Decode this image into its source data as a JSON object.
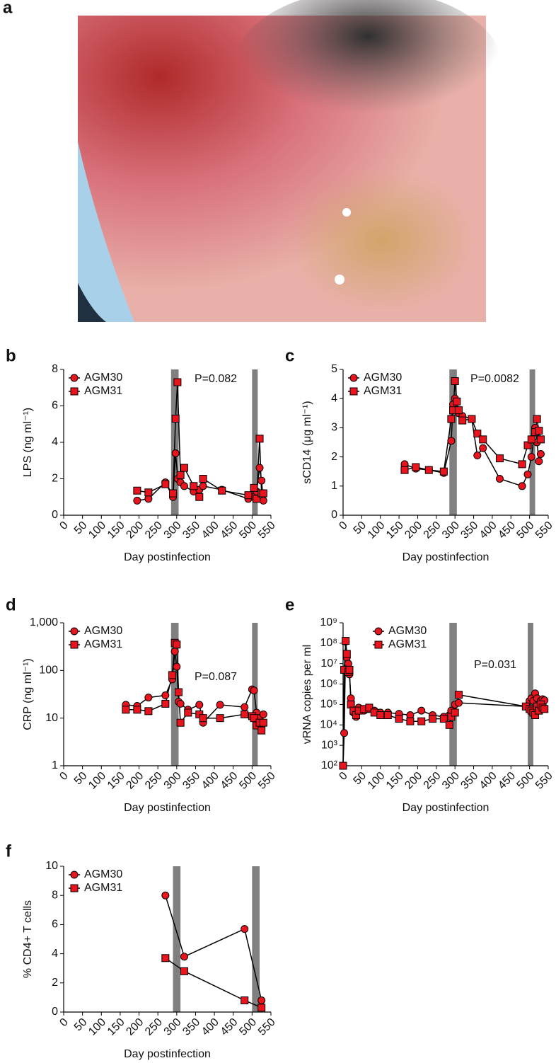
{
  "image_label": "a",
  "chart_data": [
    {
      "type": "line",
      "panel": "b",
      "ylabel": "LPS (ng ml⁻¹)",
      "xlabel": "Day postinfection",
      "annotation": "P=0.082",
      "xlim": [
        0,
        550
      ],
      "xticks": [
        0,
        50,
        100,
        150,
        200,
        250,
        300,
        350,
        400,
        450,
        500,
        550
      ],
      "ylim": [
        0,
        8
      ],
      "yticks": [
        0,
        2,
        4,
        6,
        8
      ],
      "log_y": false,
      "shaded_regions": [
        [
          285,
          305
        ],
        [
          500,
          515
        ]
      ],
      "series": [
        {
          "name": "AGM30",
          "color": "#e8141e",
          "marker": "circle",
          "x": [
            195,
            225,
            270,
            290,
            297,
            303,
            310,
            320,
            345,
            360,
            370,
            420,
            490,
            505,
            512,
            520,
            525,
            530
          ],
          "values": [
            0.8,
            0.9,
            1.8,
            1.0,
            3.4,
            2.0,
            1.8,
            1.6,
            1.3,
            1.4,
            1.6,
            1.4,
            0.9,
            1.0,
            1.3,
            2.6,
            1.9,
            0.8
          ]
        },
        {
          "name": "AGM31",
          "color": "#e8141e",
          "marker": "square",
          "x": [
            195,
            225,
            270,
            290,
            297,
            302,
            310,
            320,
            345,
            360,
            370,
            420,
            490,
            505,
            512,
            520,
            525,
            530
          ],
          "values": [
            1.35,
            1.25,
            1.7,
            1.2,
            5.3,
            7.3,
            2.2,
            2.6,
            1.6,
            1.0,
            2.0,
            1.35,
            1.1,
            1.5,
            0.9,
            4.2,
            1.2,
            1.2
          ]
        }
      ]
    },
    {
      "type": "line",
      "panel": "c",
      "ylabel": "sCD14 (μg ml⁻¹)",
      "xlabel": "Day postinfection",
      "annotation": "P=0.0082",
      "xlim": [
        0,
        550
      ],
      "xticks": [
        0,
        50,
        100,
        150,
        200,
        250,
        300,
        350,
        400,
        450,
        500,
        550
      ],
      "ylim": [
        0,
        5
      ],
      "yticks": [
        0,
        1,
        2,
        3,
        4,
        5
      ],
      "log_y": false,
      "shaded_regions": [
        [
          285,
          305
        ],
        [
          500,
          515
        ]
      ],
      "series": [
        {
          "name": "AGM30",
          "color": "#e8141e",
          "marker": "circle",
          "x": [
            165,
            195,
            230,
            270,
            290,
            295,
            300,
            305,
            310,
            320,
            345,
            360,
            375,
            420,
            480,
            495,
            505,
            515,
            520,
            525,
            530
          ],
          "values": [
            1.75,
            1.6,
            1.55,
            1.45,
            2.55,
            3.8,
            4.0,
            3.6,
            3.5,
            3.4,
            3.3,
            2.05,
            2.3,
            1.25,
            1.0,
            1.4,
            2.0,
            3.0,
            2.5,
            1.85,
            2.1
          ]
        },
        {
          "name": "AGM31",
          "color": "#e8141e",
          "marker": "square",
          "x": [
            165,
            195,
            230,
            270,
            290,
            295,
            300,
            305,
            310,
            320,
            345,
            360,
            375,
            420,
            480,
            495,
            505,
            515,
            520,
            525,
            530
          ],
          "values": [
            1.55,
            1.65,
            1.55,
            1.5,
            3.3,
            3.6,
            4.6,
            3.9,
            3.6,
            3.25,
            3.3,
            2.8,
            2.6,
            1.95,
            1.75,
            2.4,
            2.6,
            2.85,
            3.3,
            2.9,
            2.6
          ]
        }
      ]
    },
    {
      "type": "line",
      "panel": "d",
      "ylabel": "CRP (ng ml⁻¹)",
      "xlabel": "Day postinfection",
      "annotation": "P=0.087",
      "xlim": [
        0,
        550
      ],
      "xticks": [
        0,
        50,
        100,
        150,
        200,
        250,
        300,
        350,
        400,
        450,
        500,
        550
      ],
      "ylim": [
        1,
        1000
      ],
      "yticks": [
        1,
        10,
        100,
        {
          "value": 1000,
          "label": "1,000"
        }
      ],
      "log_y": true,
      "shaded_regions": [
        [
          285,
          305
        ],
        [
          500,
          515
        ]
      ],
      "series": [
        {
          "name": "AGM30",
          "color": "#e8141e",
          "marker": "circle",
          "x": [
            165,
            195,
            225,
            270,
            288,
            295,
            300,
            305,
            310,
            330,
            360,
            370,
            415,
            480,
            500,
            505,
            512,
            520,
            525,
            530
          ],
          "values": [
            19,
            18,
            27,
            30,
            65,
            250,
            120,
            22,
            20,
            15,
            19,
            8,
            19,
            17,
            40,
            38,
            13,
            10,
            8,
            12
          ]
        },
        {
          "name": "AGM31",
          "color": "#e8141e",
          "marker": "square",
          "x": [
            165,
            195,
            225,
            270,
            288,
            295,
            300,
            305,
            310,
            330,
            360,
            370,
            415,
            480,
            500,
            505,
            512,
            520,
            525,
            530
          ],
          "values": [
            15,
            15,
            14,
            20,
            80,
            380,
            350,
            35,
            8,
            13,
            12,
            10,
            10,
            12,
            11,
            10,
            7,
            8,
            5.5,
            8
          ]
        }
      ]
    },
    {
      "type": "line",
      "panel": "e",
      "ylabel": "vRNA copies per ml",
      "xlabel": "Day postinfection",
      "annotation": "P=0.031",
      "xlim": [
        0,
        550
      ],
      "xticks": [
        0,
        50,
        100,
        150,
        200,
        250,
        300,
        350,
        400,
        450,
        500,
        550
      ],
      "ylim": [
        100,
        1000000000
      ],
      "yticks": [
        {
          "value": 100,
          "label": "10²"
        },
        {
          "value": 1000,
          "label": "10³"
        },
        {
          "value": 10000,
          "label": "10⁴"
        },
        {
          "value": 100000,
          "label": "10⁵"
        },
        {
          "value": 1000000,
          "label": "10⁶"
        },
        {
          "value": 10000000,
          "label": "10⁷"
        },
        {
          "value": 100000000,
          "label": "10⁸"
        },
        {
          "value": 1000000000,
          "label": "10⁹"
        }
      ],
      "log_y": true,
      "shaded_regions": [
        [
          285,
          305
        ],
        [
          495,
          510
        ]
      ],
      "series": [
        {
          "name": "AGM30",
          "color": "#e8141e",
          "marker": "circle",
          "x": [
            0,
            3,
            7,
            10,
            14,
            17,
            21,
            28,
            35,
            42,
            56,
            70,
            84,
            100,
            120,
            150,
            180,
            210,
            240,
            270,
            285,
            290,
            300,
            310,
            490,
            500,
            505,
            510,
            515,
            520,
            525,
            530,
            535,
            540
          ],
          "values": [
            100,
            4000,
            120000000,
            20000000,
            10000000,
            3000000,
            200000,
            40000,
            25000,
            70000,
            50000,
            60000,
            50000,
            40000,
            40000,
            35000,
            30000,
            50000,
            30000,
            25000,
            30000,
            50000,
            100000,
            120000,
            80000,
            150000,
            200000,
            150000,
            350000,
            200000,
            100000,
            150000,
            180000,
            160000
          ]
        },
        {
          "name": "AGM31",
          "color": "#e8141e",
          "marker": "square",
          "x": [
            0,
            3,
            7,
            10,
            14,
            17,
            21,
            28,
            35,
            42,
            56,
            70,
            84,
            100,
            120,
            150,
            180,
            210,
            240,
            270,
            285,
            290,
            300,
            310,
            490,
            500,
            505,
            510,
            515,
            520,
            525,
            530,
            535,
            540
          ],
          "values": [
            100,
            5000000,
            130000000,
            30000000,
            4000000,
            5000000,
            100000,
            50000,
            30000,
            50000,
            60000,
            70000,
            40000,
            30000,
            30000,
            20000,
            15000,
            15000,
            20000,
            20000,
            10000,
            25000,
            40000,
            300000,
            80000,
            60000,
            50000,
            40000,
            30000,
            80000,
            50000,
            100000,
            70000,
            60000
          ]
        }
      ]
    },
    {
      "type": "line",
      "panel": "f",
      "ylabel": "% CD4+ T cells",
      "xlabel": "Day postinfection",
      "xlim": [
        0,
        550
      ],
      "xticks": [
        0,
        50,
        100,
        150,
        200,
        250,
        300,
        350,
        400,
        450,
        500,
        550
      ],
      "ylim": [
        0,
        10
      ],
      "yticks": [
        0,
        2,
        4,
        6,
        8,
        10
      ],
      "log_y": false,
      "shaded_regions": [
        [
          290,
          310
        ],
        [
          500,
          520
        ]
      ],
      "series": [
        {
          "name": "AGM30",
          "color": "#e8141e",
          "marker": "circle",
          "x": [
            270,
            320,
            480,
            525
          ],
          "values": [
            8,
            3.8,
            5.7,
            0.8
          ]
        },
        {
          "name": "AGM31",
          "color": "#e8141e",
          "marker": "square",
          "x": [
            270,
            320,
            480,
            525
          ],
          "values": [
            3.7,
            2.8,
            0.8,
            0.3
          ]
        }
      ]
    }
  ]
}
